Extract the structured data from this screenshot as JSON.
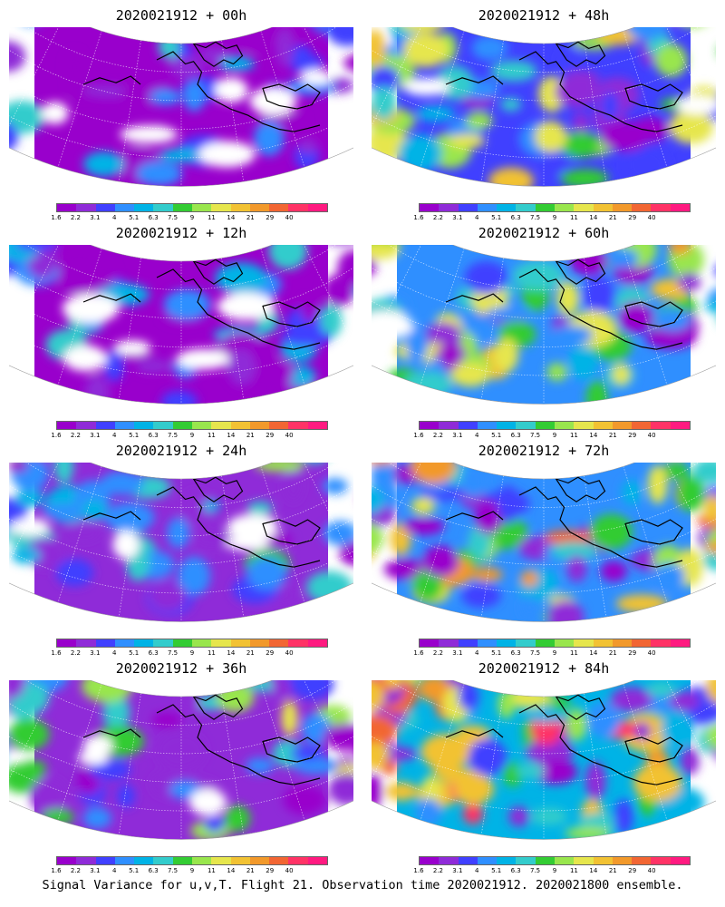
{
  "colorbar": {
    "labels": [
      "1.6",
      "2.2",
      "3.1",
      "4",
      "5.1",
      "6.3",
      "7.5",
      "9",
      "11",
      "14",
      "21",
      "29",
      "40"
    ],
    "colors": [
      "#9900cc",
      "#8f2bd8",
      "#4040ff",
      "#2f8fff",
      "#00b3e6",
      "#33cccc",
      "#33cc33",
      "#99e64d",
      "#e6e64d",
      "#f2c233",
      "#f2992b",
      "#f26633",
      "#ff3366",
      "#ff1a80"
    ]
  },
  "panels": [
    {
      "title": "2020021912 + 00h",
      "level": 0
    },
    {
      "title": "2020021912 + 48h",
      "level": 4
    },
    {
      "title": "2020021912 + 12h",
      "level": 1
    },
    {
      "title": "2020021912 + 60h",
      "level": 5
    },
    {
      "title": "2020021912 + 24h",
      "level": 2
    },
    {
      "title": "2020021912 + 72h",
      "level": 6
    },
    {
      "title": "2020021912 + 36h",
      "level": 3
    },
    {
      "title": "2020021912 + 84h",
      "level": 7
    }
  ],
  "caption": "Signal Variance for u,v,T. Flight 21. Observation time 2020021912. 2020021800 ensemble."
}
